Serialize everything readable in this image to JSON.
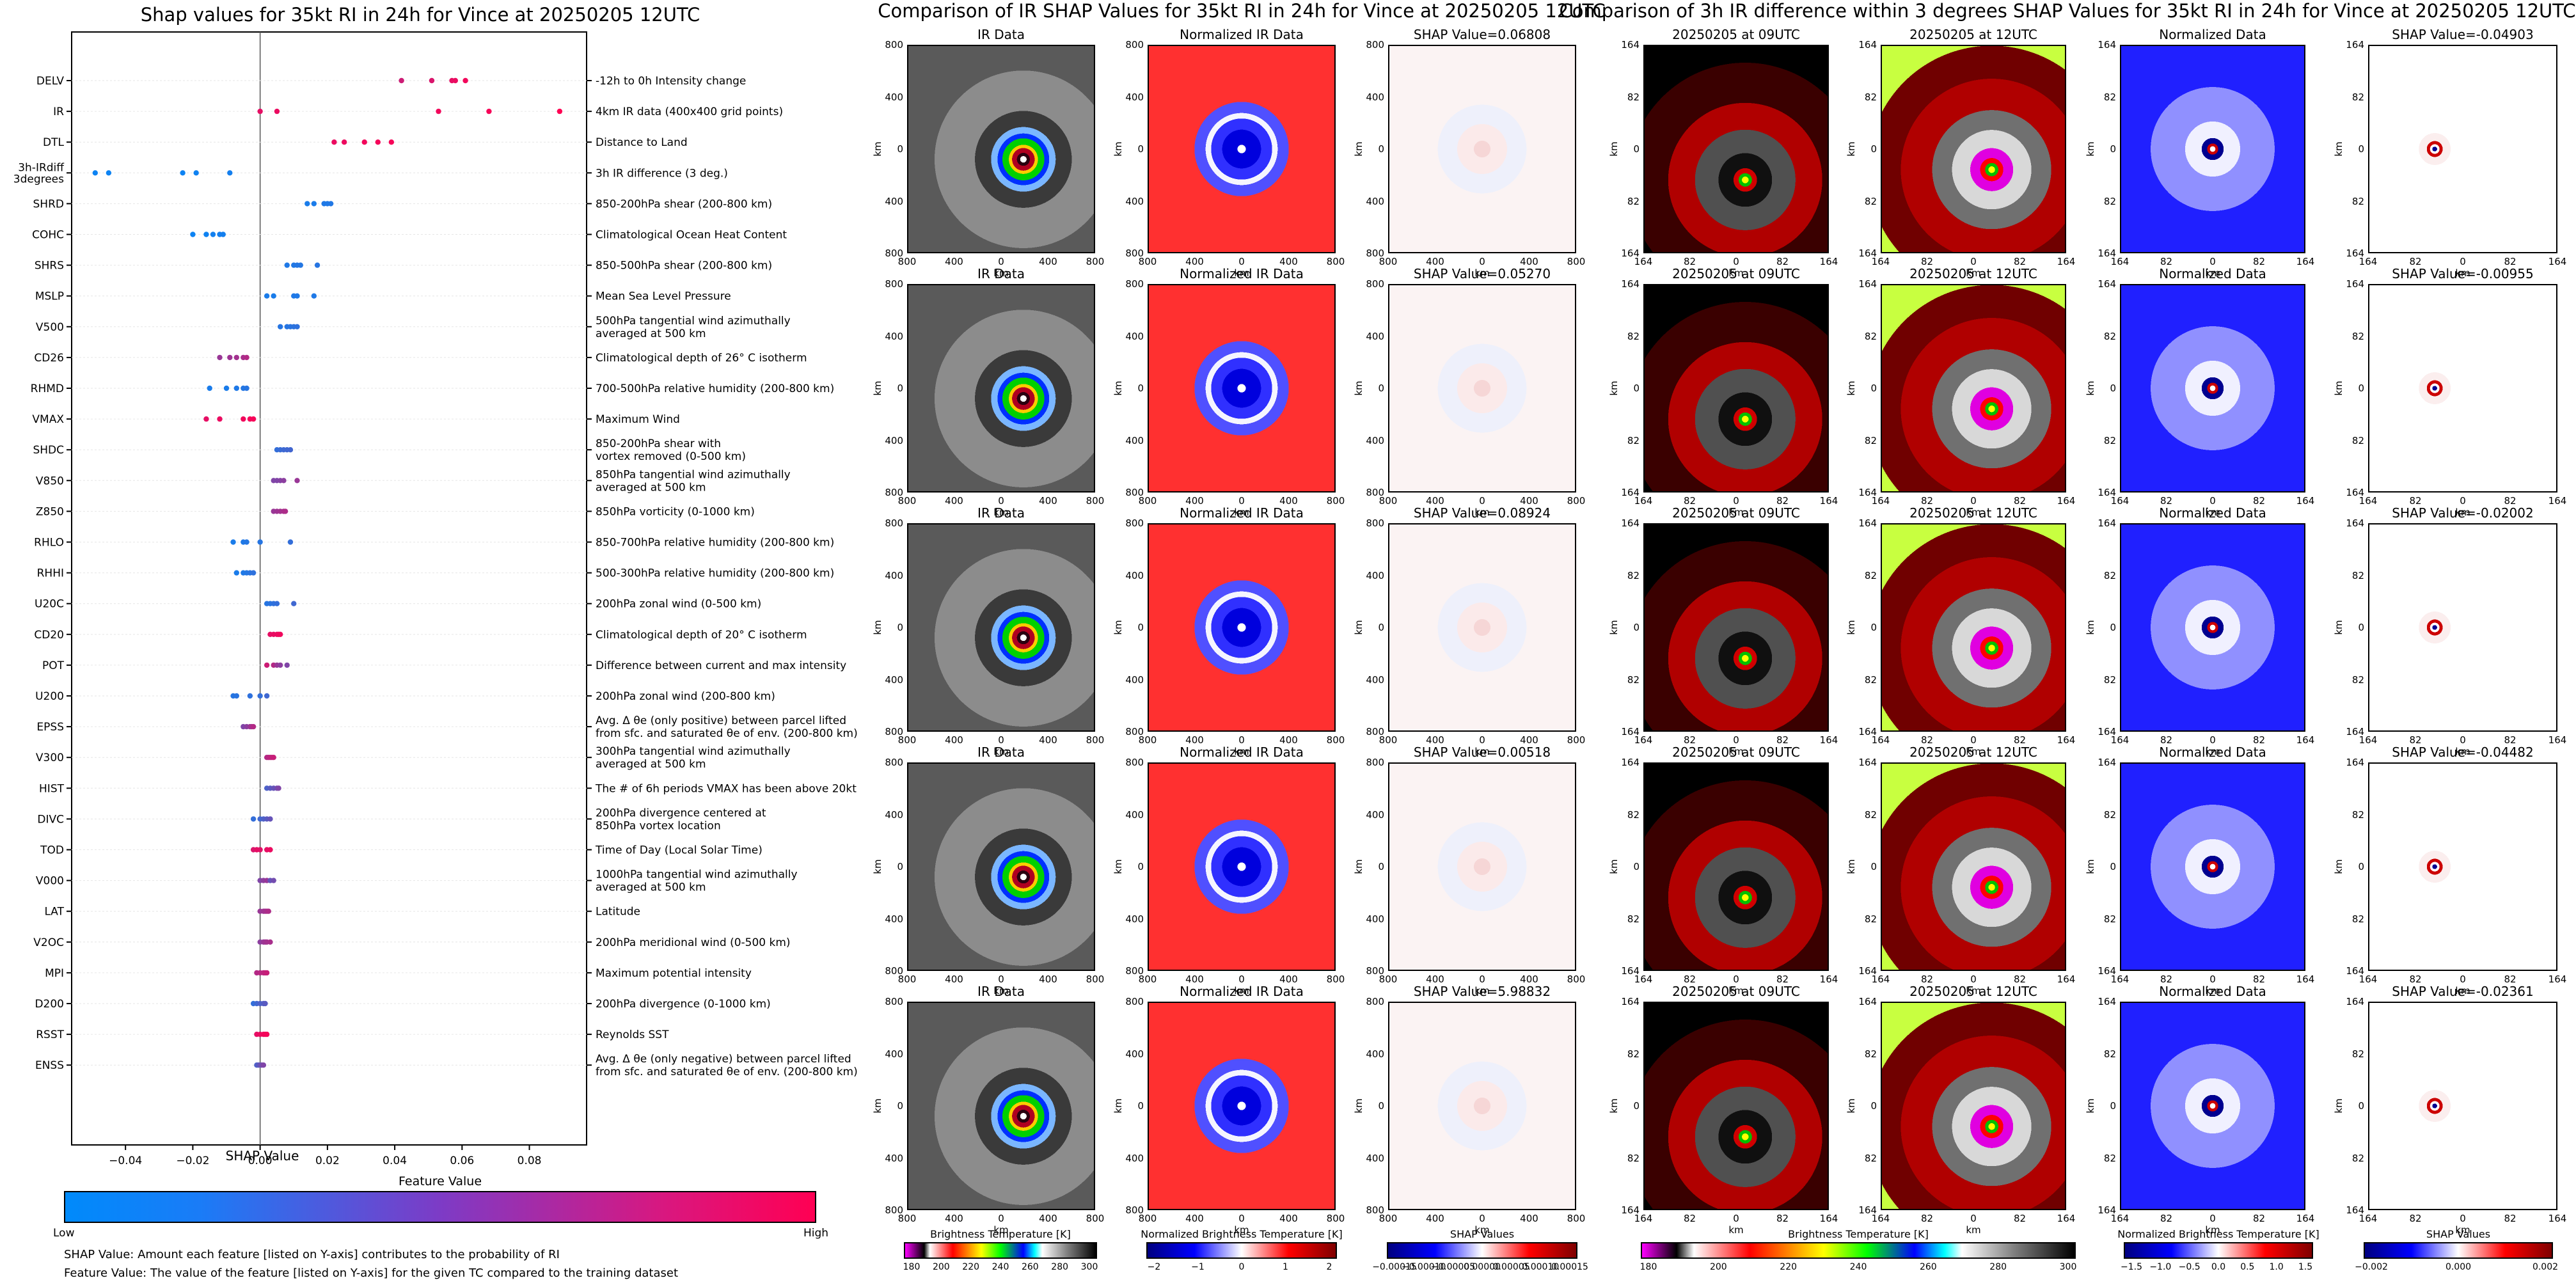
{
  "left": {
    "title": "Shap values for 35kt RI in 24h for Vince at 20250205 12UTC",
    "xlabel": "SHAP Value",
    "colorbar_title": "Feature Value",
    "colorbar_low": "Low",
    "colorbar_high": "High",
    "note1": "SHAP Value: Amount each feature [listed on Y-axis] contributes to the probability of RI",
    "note2": "Feature Value: The value of the feature [listed on Y-axis] for the given TC compared to the training dataset"
  },
  "chart_data": {
    "type": "scatter",
    "title": "Shap values for 35kt RI in 24h for Vince at 20250205 12UTC",
    "xlabel": "SHAP Value",
    "xlim": [
      -0.056,
      0.097
    ],
    "xticks": [
      "−0.04",
      "−0.02",
      "0.00",
      "0.02",
      "0.04",
      "0.06",
      "0.08"
    ],
    "xtick_values": [
      -0.04,
      -0.02,
      0.0,
      0.02,
      0.04,
      0.06,
      0.08
    ],
    "colors": {
      "low": "#008afb",
      "high": "#ff0053"
    },
    "features": [
      {
        "code": "DELV",
        "desc": [
          "-12h to 0h Intensity change"
        ],
        "points": [
          [
            0.042,
            0.8
          ],
          [
            0.051,
            0.85
          ],
          [
            0.057,
            0.9
          ],
          [
            0.058,
            0.92
          ],
          [
            0.061,
            0.95
          ]
        ]
      },
      {
        "code": "IR",
        "desc": [
          "4km IR data (400x400 grid points)"
        ],
        "points": [
          [
            0.0,
            0.9
          ],
          [
            0.005,
            0.92
          ],
          [
            0.053,
            0.95
          ],
          [
            0.068,
            0.97
          ],
          [
            0.089,
            1.0
          ]
        ]
      },
      {
        "code": "DTL",
        "desc": [
          "Distance to Land"
        ],
        "points": [
          [
            0.022,
            0.92
          ],
          [
            0.025,
            0.93
          ],
          [
            0.031,
            0.95
          ],
          [
            0.035,
            0.96
          ],
          [
            0.039,
            0.97
          ]
        ]
      },
      {
        "code": "3h-IRdiff\n3degrees",
        "desc": [
          "3h IR difference (3 deg.)"
        ],
        "points": [
          [
            -0.049,
            0.05
          ],
          [
            -0.045,
            0.05
          ],
          [
            -0.023,
            0.05
          ],
          [
            -0.019,
            0.06
          ],
          [
            -0.009,
            0.08
          ]
        ]
      },
      {
        "code": "SHRD",
        "desc": [
          "850-200hPa shear (200-800 km)"
        ],
        "points": [
          [
            0.014,
            0.1
          ],
          [
            0.016,
            0.1
          ],
          [
            0.019,
            0.12
          ],
          [
            0.02,
            0.12
          ],
          [
            0.021,
            0.13
          ]
        ]
      },
      {
        "code": "COHC",
        "desc": [
          "Climatological Ocean Heat Content"
        ],
        "points": [
          [
            -0.02,
            0.05
          ],
          [
            -0.016,
            0.06
          ],
          [
            -0.014,
            0.07
          ],
          [
            -0.012,
            0.08
          ],
          [
            -0.011,
            0.08
          ]
        ]
      },
      {
        "code": "SHRS",
        "desc": [
          "850-500hPa shear (200-800 km)"
        ],
        "points": [
          [
            0.008,
            0.12
          ],
          [
            0.01,
            0.13
          ],
          [
            0.011,
            0.14
          ],
          [
            0.012,
            0.14
          ],
          [
            0.017,
            0.15
          ]
        ]
      },
      {
        "code": "MSLP",
        "desc": [
          "Mean Sea Level Pressure"
        ],
        "points": [
          [
            0.002,
            0.1
          ],
          [
            0.004,
            0.1
          ],
          [
            0.01,
            0.12
          ],
          [
            0.011,
            0.12
          ],
          [
            0.016,
            0.12
          ]
        ]
      },
      {
        "code": "V500",
        "desc": [
          "500hPa tangential wind azimuthally",
          "averaged at 500 km"
        ],
        "points": [
          [
            0.006,
            0.15
          ],
          [
            0.008,
            0.15
          ],
          [
            0.009,
            0.16
          ],
          [
            0.01,
            0.17
          ],
          [
            0.011,
            0.18
          ]
        ]
      },
      {
        "code": "CD26",
        "desc": [
          "Climatological depth of 26° C isotherm"
        ],
        "points": [
          [
            -0.012,
            0.6
          ],
          [
            -0.009,
            0.62
          ],
          [
            -0.007,
            0.64
          ],
          [
            -0.005,
            0.66
          ],
          [
            -0.004,
            0.7
          ]
        ]
      },
      {
        "code": "RHMD",
        "desc": [
          "700-500hPa relative humidity (200-800 km)"
        ],
        "points": [
          [
            -0.015,
            0.1
          ],
          [
            -0.01,
            0.1
          ],
          [
            -0.007,
            0.12
          ],
          [
            -0.005,
            0.14
          ],
          [
            -0.004,
            0.15
          ]
        ]
      },
      {
        "code": "VMAX",
        "desc": [
          "Maximum Wind"
        ],
        "points": [
          [
            -0.016,
            0.9
          ],
          [
            -0.012,
            0.92
          ],
          [
            -0.005,
            0.95
          ],
          [
            -0.003,
            0.96
          ],
          [
            -0.002,
            0.97
          ]
        ]
      },
      {
        "code": "SHDC",
        "desc": [
          "850-200hPa shear with",
          "vortex removed (0-500 km)"
        ],
        "points": [
          [
            0.005,
            0.2
          ],
          [
            0.006,
            0.22
          ],
          [
            0.007,
            0.24
          ],
          [
            0.008,
            0.25
          ],
          [
            0.009,
            0.26
          ]
        ]
      },
      {
        "code": "V850",
        "desc": [
          "850hPa tangential wind azimuthally",
          "averaged at 500 km"
        ],
        "points": [
          [
            0.004,
            0.5
          ],
          [
            0.005,
            0.5
          ],
          [
            0.006,
            0.52
          ],
          [
            0.007,
            0.55
          ],
          [
            0.011,
            0.6
          ]
        ]
      },
      {
        "code": "Z850",
        "desc": [
          "850hPa vorticity (0-1000 km)"
        ],
        "points": [
          [
            0.004,
            0.6
          ],
          [
            0.005,
            0.62
          ],
          [
            0.006,
            0.64
          ],
          [
            0.007,
            0.66
          ],
          [
            0.0075,
            0.68
          ]
        ]
      },
      {
        "code": "RHLO",
        "desc": [
          "850-700hPa relative humidity (200-800 km)"
        ],
        "points": [
          [
            -0.008,
            0.1
          ],
          [
            -0.005,
            0.12
          ],
          [
            -0.004,
            0.14
          ],
          [
            0.0,
            0.15
          ],
          [
            0.009,
            0.2
          ]
        ]
      },
      {
        "code": "RHHI",
        "desc": [
          "500-300hPa relative humidity (200-800 km)"
        ],
        "points": [
          [
            -0.007,
            0.1
          ],
          [
            -0.005,
            0.12
          ],
          [
            -0.004,
            0.14
          ],
          [
            -0.003,
            0.16
          ],
          [
            -0.002,
            0.18
          ]
        ]
      },
      {
        "code": "U20C",
        "desc": [
          "200hPa zonal wind (0-500 km)"
        ],
        "points": [
          [
            0.002,
            0.15
          ],
          [
            0.003,
            0.16
          ],
          [
            0.004,
            0.18
          ],
          [
            0.005,
            0.2
          ],
          [
            0.01,
            0.25
          ]
        ]
      },
      {
        "code": "CD20",
        "desc": [
          "Climatological depth of 20° C isotherm"
        ],
        "points": [
          [
            0.003,
            0.9
          ],
          [
            0.004,
            0.91
          ],
          [
            0.005,
            0.92
          ],
          [
            0.0055,
            0.93
          ],
          [
            0.006,
            0.94
          ]
        ]
      },
      {
        "code": "POT",
        "desc": [
          "Difference between current and max intensity"
        ],
        "points": [
          [
            0.002,
            0.8
          ],
          [
            0.004,
            0.7
          ],
          [
            0.005,
            0.6
          ],
          [
            0.006,
            0.55
          ],
          [
            0.008,
            0.5
          ]
        ]
      },
      {
        "code": "U200",
        "desc": [
          "200hPa zonal wind (200-800 km)"
        ],
        "points": [
          [
            -0.008,
            0.15
          ],
          [
            -0.007,
            0.16
          ],
          [
            -0.003,
            0.18
          ],
          [
            0.0,
            0.2
          ],
          [
            0.002,
            0.25
          ]
        ]
      },
      {
        "code": "EPSS",
        "desc": [
          "Avg. Δ θe (only positive) between parcel lifted",
          "from sfc. and saturated θe of env. (200-800 km)"
        ],
        "points": [
          [
            -0.005,
            0.5
          ],
          [
            -0.004,
            0.55
          ],
          [
            -0.003,
            0.6
          ],
          [
            -0.0025,
            0.65
          ],
          [
            -0.002,
            0.7
          ]
        ]
      },
      {
        "code": "V300",
        "desc": [
          "300hPa tangential wind azimuthally",
          "averaged at 500 km"
        ],
        "points": [
          [
            0.002,
            0.7
          ],
          [
            0.0025,
            0.72
          ],
          [
            0.003,
            0.74
          ],
          [
            0.0035,
            0.76
          ],
          [
            0.004,
            0.78
          ]
        ]
      },
      {
        "code": "HIST",
        "desc": [
          "The # of 6h periods VMAX has been above 20kt"
        ],
        "points": [
          [
            0.002,
            0.3
          ],
          [
            0.003,
            0.35
          ],
          [
            0.004,
            0.4
          ],
          [
            0.005,
            0.45
          ],
          [
            0.0055,
            0.5
          ]
        ]
      },
      {
        "code": "DIVC",
        "desc": [
          "200hPa divergence centered at",
          "850hPa vortex location"
        ],
        "points": [
          [
            -0.002,
            0.2
          ],
          [
            0.0,
            0.25
          ],
          [
            0.001,
            0.3
          ],
          [
            0.002,
            0.35
          ],
          [
            0.003,
            0.4
          ]
        ]
      },
      {
        "code": "TOD",
        "desc": [
          "Time of Day (Local Solar Time)"
        ],
        "points": [
          [
            -0.002,
            0.85
          ],
          [
            -0.001,
            0.9
          ],
          [
            0.0,
            0.88
          ],
          [
            0.002,
            0.9
          ],
          [
            0.003,
            0.92
          ]
        ]
      },
      {
        "code": "V000",
        "desc": [
          "1000hPa tangential wind azimuthally",
          "averaged at 500 km"
        ],
        "points": [
          [
            0.0,
            0.5
          ],
          [
            0.001,
            0.55
          ],
          [
            0.002,
            0.6
          ],
          [
            0.003,
            0.4
          ],
          [
            0.004,
            0.45
          ]
        ]
      },
      {
        "code": "LAT",
        "desc": [
          "Latitude"
        ],
        "points": [
          [
            0.0,
            0.6
          ],
          [
            0.001,
            0.62
          ],
          [
            0.0015,
            0.64
          ],
          [
            0.002,
            0.66
          ],
          [
            0.0025,
            0.68
          ]
        ]
      },
      {
        "code": "V2OC",
        "desc": [
          "200hPa meridional wind (0-500 km)"
        ],
        "points": [
          [
            0.0,
            0.55
          ],
          [
            0.001,
            0.6
          ],
          [
            0.0015,
            0.62
          ],
          [
            0.002,
            0.64
          ],
          [
            0.003,
            0.66
          ]
        ]
      },
      {
        "code": "MPI",
        "desc": [
          "Maximum potential intensity"
        ],
        "points": [
          [
            -0.001,
            0.7
          ],
          [
            0.0,
            0.72
          ],
          [
            0.001,
            0.74
          ],
          [
            0.0015,
            0.76
          ],
          [
            0.002,
            0.78
          ]
        ]
      },
      {
        "code": "D200",
        "desc": [
          "200hPa divergence (0-1000 km)"
        ],
        "points": [
          [
            -0.002,
            0.2
          ],
          [
            -0.001,
            0.25
          ],
          [
            0.0,
            0.3
          ],
          [
            0.001,
            0.32
          ],
          [
            0.0015,
            0.35
          ]
        ]
      },
      {
        "code": "RSST",
        "desc": [
          "Reynolds SST"
        ],
        "points": [
          [
            -0.001,
            0.9
          ],
          [
            0.0,
            0.92
          ],
          [
            0.001,
            0.94
          ],
          [
            0.0015,
            0.95
          ],
          [
            0.002,
            0.96
          ]
        ]
      },
      {
        "code": "ENSS",
        "desc": [
          "Avg. Δ θe (only negative) between parcel lifted",
          "from sfc. and saturated θe of env. (200-800 km)"
        ],
        "points": [
          [
            -0.001,
            0.3
          ],
          [
            -0.0005,
            0.35
          ],
          [
            0.0,
            0.4
          ],
          [
            0.0005,
            0.45
          ],
          [
            0.001,
            0.5
          ]
        ]
      }
    ]
  },
  "middle": {
    "title": "Comparison of IR SHAP Values for 35kt RI in 24h for Vince at 20250205 12UTC",
    "col_titles": [
      "IR Data",
      "Normalized IR Data"
    ],
    "shap_titles": [
      "SHAP Value=0.06808",
      "SHAP Value=0.05270",
      "SHAP Value=0.08924",
      "SHAP Value=0.00518",
      "SHAP Value=5.98832"
    ],
    "axis_label": "km",
    "ticks": [
      "800",
      "400",
      "0",
      "400",
      "800"
    ],
    "colorbars": [
      {
        "label": "Brightness Temperature [K]",
        "ticks": [
          "180",
          "200",
          "220",
          "240",
          "260",
          "280",
          "300"
        ]
      },
      {
        "label": "Normalized Brightness Temperature [K]",
        "ticks": [
          "−2",
          "−1",
          "0",
          "1",
          "2"
        ]
      },
      {
        "label": "SHAP Values",
        "ticks": [
          "−0.00015",
          "−0.00010",
          "−0.00005",
          "0.00000",
          "0.00005",
          "0.00010",
          "0.00015"
        ]
      }
    ]
  },
  "right": {
    "title": "Comparison of 3h IR difference within 3 degrees SHAP Values for 35kt RI in 24h for Vince at 20250205 12UTC",
    "col_titles": [
      "20250205 at 09UTC",
      "20250205 at 12UTC",
      "Normalized Data"
    ],
    "shap_titles": [
      "SHAP Value=-0.04903",
      "SHAP Value=-0.00955",
      "SHAP Value=-0.02002",
      "SHAP Value=-0.04482",
      "SHAP Value=-0.02361"
    ],
    "axis_label": "km",
    "ticks": [
      "164",
      "82",
      "0",
      "82",
      "164"
    ],
    "colorbars": [
      {
        "label": "Brightness Temperature [K]",
        "ticks": [
          "180",
          "200",
          "220",
          "240",
          "260",
          "280",
          "300"
        ]
      },
      {
        "label": "Normalized Brightness Temperature [K]",
        "ticks": [
          "−1.5",
          "−1.0",
          "−0.5",
          "0.0",
          "0.5",
          "1.0",
          "1.5"
        ]
      },
      {
        "label": "SHAP Values",
        "ticks": [
          "−0.002",
          "0.000",
          "0.002"
        ]
      }
    ]
  }
}
